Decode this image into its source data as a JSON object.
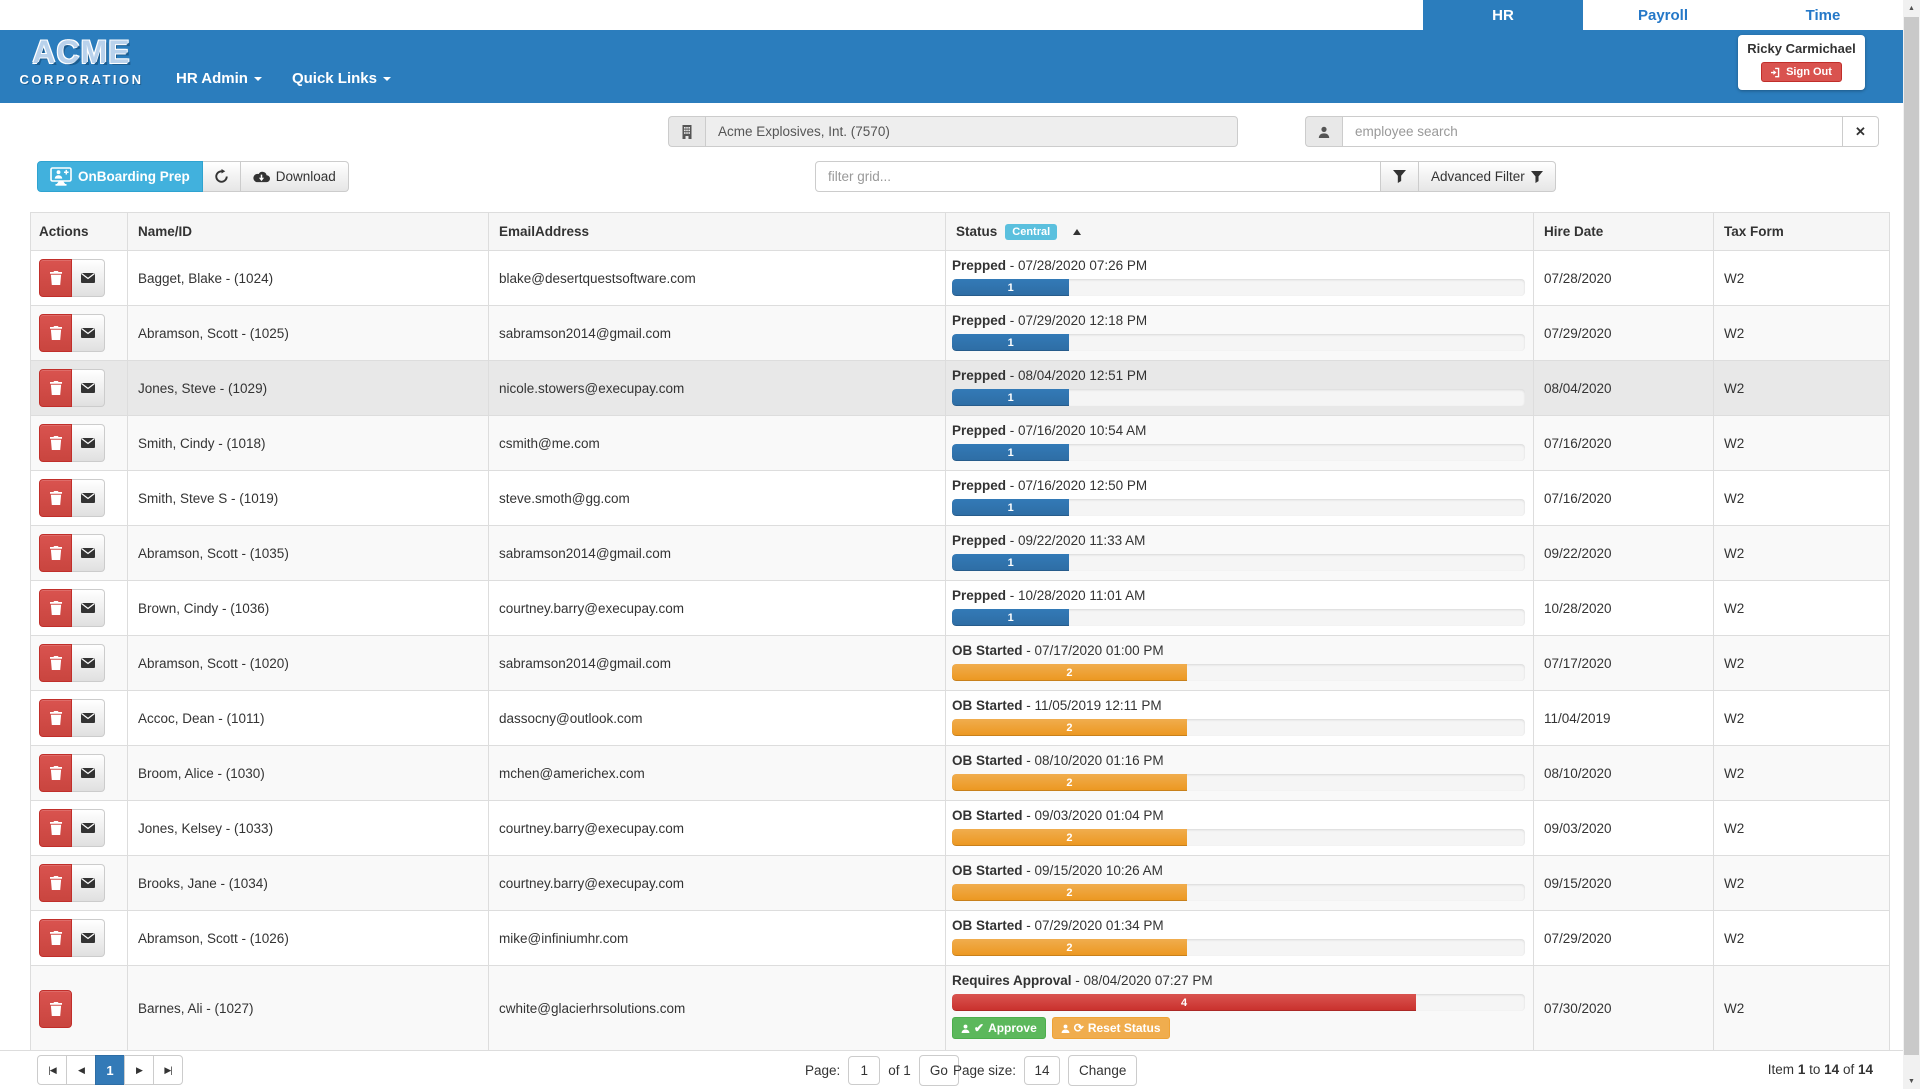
{
  "colors": {
    "navbar": "#2b7dbd",
    "accent_cyan": "#41b1dd",
    "danger": "#d9534f",
    "success": "#5cb85c",
    "warning": "#f0ad4e",
    "info": "#5bc0de"
  },
  "tabs": [
    {
      "label": "HR",
      "active": true
    },
    {
      "label": "Payroll",
      "active": false
    },
    {
      "label": "Time",
      "active": false
    }
  ],
  "navbar": {
    "logo_line1": "ACME",
    "logo_line2": "CORPORATION",
    "menu_hr_admin": "HR Admin",
    "menu_quick_links": "Quick Links",
    "user_name": "Ricky Carmichael",
    "sign_out_label": "Sign Out"
  },
  "company_selector": {
    "value": "Acme Explosives, Int. (7570)"
  },
  "employee_search": {
    "placeholder": "employee search",
    "clear_glyph": "✕"
  },
  "toolbar": {
    "view_label": "OnBoarding Prep",
    "download_label": "Download",
    "filter_placeholder": "filter grid...",
    "advanced_filter_label": "Advanced Filter"
  },
  "table": {
    "headers": {
      "actions": "Actions",
      "name": "Name/ID",
      "email": "EmailAddress",
      "status": "Status",
      "status_badge": "Central",
      "hire": "Hire Date",
      "tax": "Tax Form"
    },
    "approve_label": "Approve",
    "reset_label": "Reset Status",
    "approve_glyph": "✔",
    "reset_glyph": "⟳",
    "statuses": {
      "prepped": {
        "label": "Prepped",
        "step": "1",
        "pct": 20.5,
        "fill": "#337ab7",
        "fill_dark": "#2e6da4"
      },
      "ob": {
        "label": "OB Started",
        "step": "2",
        "pct": 41,
        "fill": "#f0ad4e",
        "fill_dark": "#ec971f"
      },
      "approval": {
        "label": "Requires Approval",
        "step": "4",
        "pct": 81,
        "fill": "#d9534f",
        "fill_dark": "#c9302c"
      }
    },
    "rows": [
      {
        "name": "Bagget, Blake - (1024)",
        "email": "blake@desertquestsoftware.com",
        "kind": "prepped",
        "time": "07/28/2020 07:26 PM",
        "hire": "07/28/2020",
        "tax": "W2",
        "mail": true
      },
      {
        "name": "Abramson, Scott - (1025)",
        "email": "sabramson2014@gmail.com",
        "kind": "prepped",
        "time": "07/29/2020 12:18 PM",
        "hire": "07/29/2020",
        "tax": "W2",
        "mail": true
      },
      {
        "name": "Jones, Steve - (1029)",
        "email": "nicole.stowers@execupay.com",
        "kind": "prepped",
        "time": "08/04/2020 12:51 PM",
        "hire": "08/04/2020",
        "tax": "W2",
        "mail": true,
        "hover": true
      },
      {
        "name": "Smith, Cindy - (1018)",
        "email": "csmith@me.com",
        "kind": "prepped",
        "time": "07/16/2020 10:54 AM",
        "hire": "07/16/2020",
        "tax": "W2",
        "mail": true
      },
      {
        "name": "Smith, Steve S - (1019)",
        "email": "steve.smoth@gg.com",
        "kind": "prepped",
        "time": "07/16/2020 12:50 PM",
        "hire": "07/16/2020",
        "tax": "W2",
        "mail": true
      },
      {
        "name": "Abramson, Scott - (1035)",
        "email": "sabramson2014@gmail.com",
        "kind": "prepped",
        "time": "09/22/2020 11:33 AM",
        "hire": "09/22/2020",
        "tax": "W2",
        "mail": true
      },
      {
        "name": "Brown, Cindy - (1036)",
        "email": "courtney.barry@execupay.com",
        "kind": "prepped",
        "time": "10/28/2020 11:01 AM",
        "hire": "10/28/2020",
        "tax": "W2",
        "mail": true
      },
      {
        "name": "Abramson, Scott - (1020)",
        "email": "sabramson2014@gmail.com",
        "kind": "ob",
        "time": "07/17/2020 01:00 PM",
        "hire": "07/17/2020",
        "tax": "W2",
        "mail": true
      },
      {
        "name": "Accoc, Dean - (1011)",
        "email": "dassocny@outlook.com",
        "kind": "ob",
        "time": "11/05/2019 12:11 PM",
        "hire": "11/04/2019",
        "tax": "W2",
        "mail": true
      },
      {
        "name": "Broom, Alice - (1030)",
        "email": "mchen@americhex.com",
        "kind": "ob",
        "time": "08/10/2020 01:16 PM",
        "hire": "08/10/2020",
        "tax": "W2",
        "mail": true
      },
      {
        "name": "Jones, Kelsey - (1033)",
        "email": "courtney.barry@execupay.com",
        "kind": "ob",
        "time": "09/03/2020 01:04 PM",
        "hire": "09/03/2020",
        "tax": "W2",
        "mail": true
      },
      {
        "name": "Brooks, Jane - (1034)",
        "email": "courtney.barry@execupay.com",
        "kind": "ob",
        "time": "09/15/2020 10:26 AM",
        "hire": "09/15/2020",
        "tax": "W2",
        "mail": true
      },
      {
        "name": "Abramson, Scott - (1026)",
        "email": "mike@infiniumhr.com",
        "kind": "ob",
        "time": "07/29/2020 01:34 PM",
        "hire": "07/29/2020",
        "tax": "W2",
        "mail": true
      },
      {
        "name": "Barnes, Ali - (1027)",
        "email": "cwhite@glacierhrsolutions.com",
        "kind": "approval",
        "time": "08/04/2020 07:27 PM",
        "hire": "07/30/2020",
        "tax": "W2",
        "mail": false,
        "approval": true
      }
    ]
  },
  "footer": {
    "pager": {
      "first": "|◀",
      "prev": "◀",
      "page": "1",
      "next": "▶",
      "last": "▶|"
    },
    "page_label": "Page:",
    "page_value": "1",
    "of_label": "of 1",
    "go_label": "Go",
    "size_label": "Page size:",
    "size_value": "14",
    "change_label": "Change",
    "summary": {
      "prefix": "Item",
      "from": "1",
      "mid": "to",
      "to": "14",
      "of": "of",
      "total": "14"
    }
  },
  "scrollbar": {
    "up_glyph": "▲",
    "down_glyph": "▼"
  }
}
